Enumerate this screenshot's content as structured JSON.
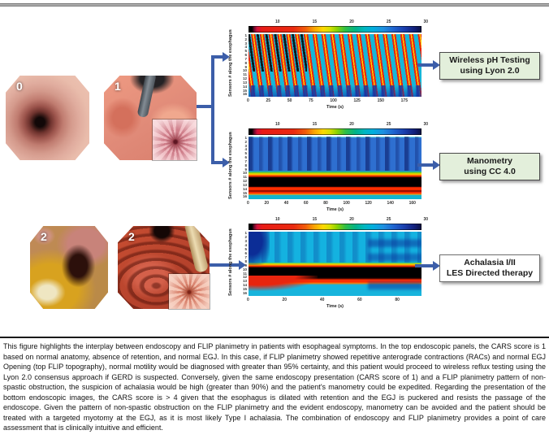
{
  "panels": [
    {
      "id": "top-left",
      "label": "0",
      "description": "normal esophagus, endoscopic view"
    },
    {
      "id": "top-right",
      "label": "1",
      "description": "normal EGJ retroflexed view with inset of EGJ"
    },
    {
      "id": "bottom-left",
      "label": "2",
      "description": "dilated esophagus with retained fluid"
    },
    {
      "id": "bottom-right",
      "label": "2",
      "description": "puckered EGJ resisting endoscope passage, with inset"
    }
  ],
  "chart_data": [
    {
      "type": "heatmap",
      "name": "flip-topography-top",
      "description": "FLIP panometry topography showing repetitive antegrade contractions (RACs): ~20 diagonal red/yellow contraction bands on cyan background, dark bands upper-left, navy notches along bottom row",
      "ylabel": "Sensors # along the esophagus",
      "xlabel": "Time (s)",
      "y_ticks": [
        "1",
        "2",
        "3",
        "4",
        "5",
        "6",
        "7",
        "8",
        "9",
        "10",
        "11",
        "12",
        "13",
        "14",
        "15",
        "16"
      ],
      "x_ticks": [
        "0",
        "25",
        "50",
        "75",
        "100",
        "125",
        "150",
        "175"
      ],
      "colorbar_ticks": [
        "10",
        "15",
        "20",
        "25",
        "30"
      ],
      "colormap": "black-red-yellow-green-cyan-blue-navy"
    },
    {
      "type": "heatmap",
      "name": "flip-topography-middle",
      "description": "FLIP topography with non-spastic obstruction: blue/navy vertical streaks over upper sensors, narrow yellow-red transition, thick black band at distal sensors 11-14 flanked by red, cyan below",
      "ylabel": "Sensors # along the esophagus",
      "xlabel": "Time (s)",
      "y_ticks": [
        "1",
        "2",
        "3",
        "4",
        "5",
        "6",
        "7",
        "8",
        "9",
        "10",
        "11",
        "12",
        "13",
        "14",
        "15",
        "16"
      ],
      "x_ticks": [
        "0",
        "20",
        "40",
        "60",
        "80",
        "100",
        "120",
        "140",
        "160"
      ],
      "colorbar_ticks": [
        "10",
        "15",
        "20",
        "25",
        "30"
      ],
      "colormap": "black-red-yellow-green-cyan-blue-navy"
    },
    {
      "type": "heatmap",
      "name": "flip-topography-bottom",
      "description": "FLIP topography with non-spastic obstruction and dilated esophagus: cyan field with navy patch at left and dark blue smudges at right, black band at sensors 11-13 bordered by red, red region descending at lower left",
      "ylabel": "Sensors # along the esophagus",
      "xlabel": "Time (s)",
      "y_ticks": [
        "1",
        "2",
        "3",
        "4",
        "5",
        "6",
        "7",
        "8",
        "9",
        "10",
        "11",
        "12",
        "13",
        "14",
        "15",
        "16"
      ],
      "x_ticks": [
        "0",
        "20",
        "40",
        "60",
        "80"
      ],
      "colorbar_ticks": [
        "10",
        "15",
        "20",
        "25",
        "30"
      ],
      "colormap": "black-red-yellow-green-cyan-blue-navy"
    }
  ],
  "outcome_boxes": [
    {
      "line1": "Wireless pH Testing",
      "line2": "using Lyon 2.0",
      "style": "green"
    },
    {
      "line1": "Manometry",
      "line2": "using CC 4.0",
      "style": "green"
    },
    {
      "line1": "Achalasia I/II",
      "line2": "LES Directed therapy",
      "style": "white"
    }
  ],
  "colors": {
    "arrow_blue": "#3c5ea9",
    "box_green_bg": "#e3efdb",
    "box_white_bg": "#ffffff",
    "box_border": "#4a4a4a"
  },
  "caption": "This figure highlights the interplay between endoscopy and FLIP planimetry in patients with esophageal symptoms.  In the top endoscopic panels, the CARS score is 1 based on normal anatomy, absence of retention, and normal EGJ.  In this case, if FLIP planimetry showed repetitive anterograde contractions (RACs) and normal EGJ Opening (top FLIP topography), normal motility would be diagnosed with greater than 95% certainty, and this patient would proceed to wireless reflux testing using the Lyon 2.0 consensus approach if GERD is suspected.  Conversely, given the same endoscopy presentation (CARS score of 1) and a FLIP planimetry pattern of non-spastic obstruction, the suspicion of achalasia would be high (greater than 90%) and the patient's manometry could be expedited.  Regarding the presentation of the bottom endoscopic images, the CARS score is > 4 given that the esophagus is dilated with retention and the EGJ is puckered and resists the passage of the endoscope.  Given the pattern of non-spastic obstruction on the FLIP planimetry and the evident endoscopy, manometry can be avoided and the patient should be treated with a targeted myotomy at the EGJ, as it is most likely Type I achalasia.  The combination of endoscopy and FLIP planimetry provides a point of care assessment that is clinically intuitive and efficient."
}
